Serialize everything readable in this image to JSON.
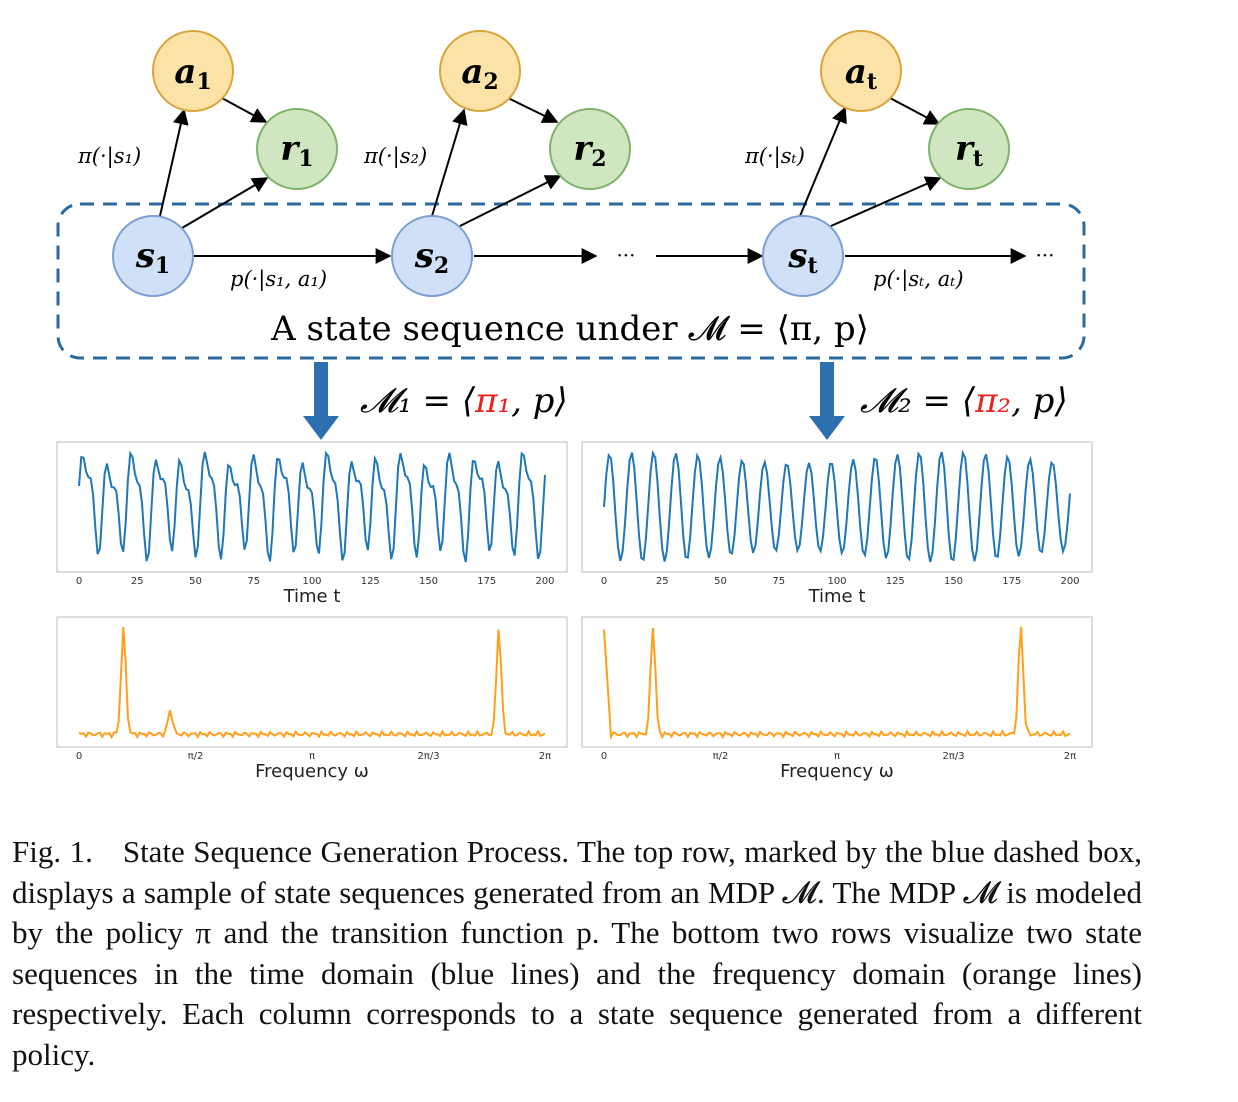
{
  "nodes": {
    "a1": {
      "base": "a",
      "sub": "1",
      "color": "#fbe2a7",
      "stroke": "#d9a43c"
    },
    "a2": {
      "base": "a",
      "sub": "2",
      "color": "#fbe2a7",
      "stroke": "#d9a43c"
    },
    "at": {
      "base": "a",
      "sub": "t",
      "color": "#fbe2a7",
      "stroke": "#d9a43c"
    },
    "r1": {
      "base": "r",
      "sub": "1",
      "color": "#cfe6c1",
      "stroke": "#7fb36a"
    },
    "r2": {
      "base": "r",
      "sub": "2",
      "color": "#cfe6c1",
      "stroke": "#7fb36a"
    },
    "rt": {
      "base": "r",
      "sub": "t",
      "color": "#cfe6c1",
      "stroke": "#7fb36a"
    },
    "s1": {
      "base": "s",
      "sub": "1",
      "color": "#cfe0f7",
      "stroke": "#7b9fd6"
    },
    "s2": {
      "base": "s",
      "sub": "2",
      "color": "#cfe0f7",
      "stroke": "#7b9fd6"
    },
    "st": {
      "base": "s",
      "sub": "t",
      "color": "#cfe0f7",
      "stroke": "#7b9fd6"
    }
  },
  "edge_labels": {
    "pi1": "π(·|s₁)",
    "pi2": "π(·|s₂)",
    "pit": "π(·|sₜ)",
    "p1": "p(·|s₁, a₁)",
    "pt": "p(·|sₜ, aₜ)",
    "ellipsis": "···"
  },
  "box_label": "A state sequence under 𝓜 = ⟨π, p⟩",
  "model_labels": {
    "m1": {
      "pre": "𝓜₁ = ⟨",
      "pi": "π₁",
      "post": ", p⟩"
    },
    "m2": {
      "pre": "𝓜₂ = ⟨",
      "pi": "π₂",
      "post": ", p⟩"
    }
  },
  "colors": {
    "box_dash": "#2c6a9e",
    "arrow_down": "#2e6fb0",
    "time_line": "#1f77b4",
    "freq_line": "#ff9f1c",
    "pi_red": "#e8221c"
  },
  "chart_data": [
    {
      "type": "line",
      "panel": "time-left",
      "xlabel": "Time t",
      "xticks": [
        "0",
        "25",
        "50",
        "75",
        "100",
        "125",
        "150",
        "175",
        "200"
      ],
      "xlim": [
        0,
        200
      ],
      "series": [
        {
          "period": 10.5,
          "samples": 200,
          "form": "sawtooth-spike"
        }
      ]
    },
    {
      "type": "line",
      "panel": "time-right",
      "xlabel": "Time t",
      "xticks": [
        "0",
        "25",
        "50",
        "75",
        "100",
        "125",
        "150",
        "175",
        "200"
      ],
      "xlim": [
        0,
        200
      ],
      "series": [
        {
          "period": 9.5,
          "samples": 200,
          "form": "smooth-oscillation"
        }
      ]
    },
    {
      "type": "line",
      "panel": "freq-left",
      "xlabel": "Frequency ω",
      "xticks": [
        "0",
        "π/2",
        "π",
        "2π/3",
        "2π"
      ],
      "xlim": [
        0,
        6.283
      ],
      "series": [
        {
          "peaks": [
            0.6,
            1.23,
            5.66
          ],
          "form": "spectrum"
        }
      ]
    },
    {
      "type": "line",
      "panel": "freq-right",
      "xlabel": "Frequency ω",
      "xticks": [
        "0",
        "π/2",
        "π",
        "2π/3",
        "2π"
      ],
      "xlim": [
        0,
        6.283
      ],
      "series": [
        {
          "peaks": [
            0.66,
            5.62
          ],
          "form": "spectrum"
        }
      ]
    }
  ],
  "caption": {
    "label": "Fig. 1.",
    "text": "State Sequence Generation Process. The top row, marked by the blue dashed box, displays a sample of state sequences generated from an MDP 𝓜. The MDP 𝓜 is modeled by the policy π and the transition function p. The bottom two rows visualize two state sequences in the time domain (blue lines) and the frequency domain (orange lines) respectively. Each column corresponds to a state sequence generated from a different policy."
  }
}
